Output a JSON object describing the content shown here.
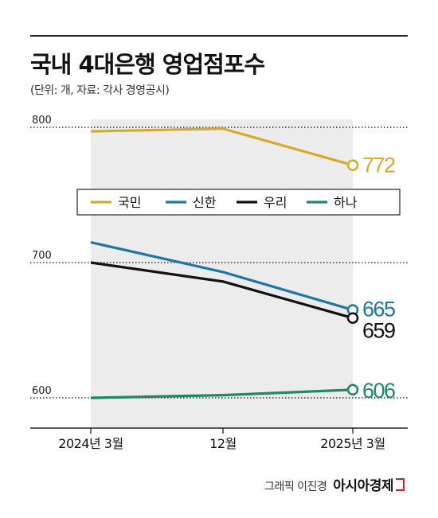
{
  "header": {
    "title": "국내 4대은행 영업점포수",
    "subtitle": "(단위: 개, 자료: 각사 경영공시)"
  },
  "footer": {
    "credit": "그래픽 이진경",
    "brand": "아시아경제"
  },
  "chart_data": {
    "type": "line",
    "categories": [
      "2024년 3월",
      "12월",
      "2025년 3월"
    ],
    "y_ticks": [
      "800",
      "700",
      "600"
    ],
    "ylim": [
      570,
      800
    ],
    "grid": "dotted horizontal at ticks",
    "legend_position": "center, inside plot",
    "shaded_region": [
      "2024년 3월",
      "2025년 3월"
    ],
    "series": [
      {
        "name": "국민",
        "color": "#D9A92A",
        "values": [
          797,
          799,
          772
        ],
        "end_label": "772"
      },
      {
        "name": "신한",
        "color": "#1B77A8",
        "values": [
          715,
          693,
          665
        ],
        "end_label": "665"
      },
      {
        "name": "우리",
        "color": "#111111",
        "values": [
          700,
          686,
          659
        ],
        "end_label": "659"
      },
      {
        "name": "하나",
        "color": "#1E8A5E",
        "values": [
          600,
          602,
          606
        ],
        "end_label": "606"
      }
    ]
  }
}
